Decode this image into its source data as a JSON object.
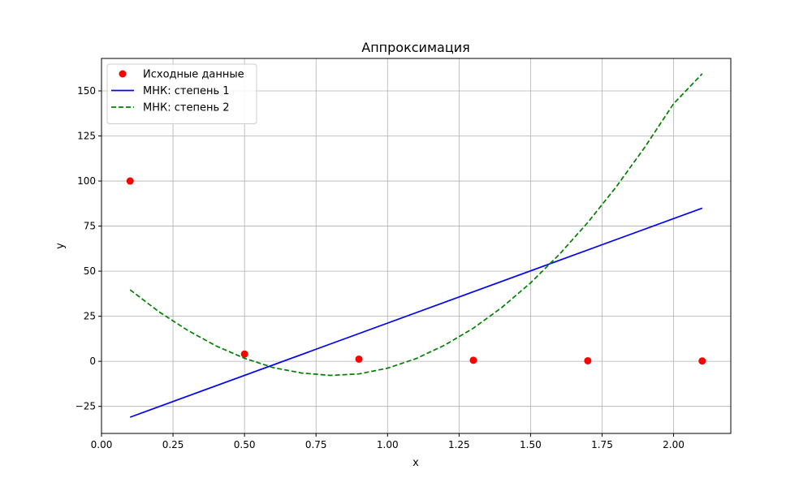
{
  "chart_data": {
    "type": "line",
    "title": "Аппроксимация",
    "xlabel": "x",
    "ylabel": "y",
    "xlim": [
      0.0,
      2.2
    ],
    "ylim": [
      -40,
      168
    ],
    "x_ticks": [
      0.0,
      0.25,
      0.5,
      0.75,
      1.0,
      1.25,
      1.5,
      1.75,
      2.0
    ],
    "x_tick_labels": [
      "0.00",
      "0.25",
      "0.50",
      "0.75",
      "1.00",
      "1.25",
      "1.50",
      "1.75",
      "2.00"
    ],
    "y_ticks": [
      -25,
      0,
      25,
      50,
      75,
      100,
      125,
      150
    ],
    "y_tick_labels": [
      "−25",
      "0",
      "25",
      "50",
      "75",
      "100",
      "125",
      "150"
    ],
    "grid": true,
    "legend_position": "top-left",
    "series": [
      {
        "name": "Исходные данные",
        "kind": "scatter",
        "color": "#ff0000",
        "x": [
          0.1,
          0.5,
          0.9,
          1.3,
          1.7,
          2.1
        ],
        "y": [
          100,
          4,
          1.2,
          0.6,
          0.3,
          0.2
        ]
      },
      {
        "name": "МНК: степень 1",
        "kind": "line",
        "style": "solid",
        "color": "#0000ff",
        "x": [
          0.1,
          2.1
        ],
        "y": [
          -31,
          85
        ]
      },
      {
        "name": "МНК: степень 2",
        "kind": "line",
        "style": "dashed",
        "color": "#008000",
        "x": [
          0.1,
          0.2,
          0.3,
          0.4,
          0.5,
          0.6,
          0.7,
          0.8,
          0.9,
          1.0,
          1.1,
          1.2,
          1.3,
          1.4,
          1.5,
          1.6,
          1.7,
          1.8,
          1.9,
          2.0,
          2.1
        ],
        "y": [
          39.7,
          27.6,
          17.3,
          8.6,
          1.7,
          -3.5,
          -6.5,
          -7.8,
          -7.0,
          -3.8,
          1.5,
          9.0,
          18.4,
          29.9,
          43.5,
          59.2,
          77.0,
          96.9,
          118.9,
          142.9,
          159.5
        ]
      }
    ]
  }
}
